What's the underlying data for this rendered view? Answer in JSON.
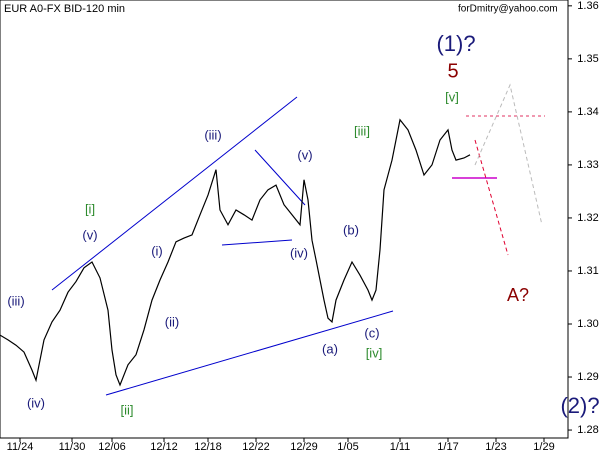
{
  "chart_data": {
    "type": "line",
    "title": "EUR A0-FX BID-120 min",
    "watermark": "forDmitry@yahoo.com",
    "x": [
      0,
      2,
      4,
      6,
      8,
      9,
      11,
      13,
      15,
      17,
      19,
      21,
      23,
      25,
      27,
      28,
      29,
      30,
      32,
      34,
      36,
      38,
      40,
      42,
      44,
      46,
      48,
      50,
      52,
      54,
      55,
      57,
      59,
      61,
      63,
      65,
      67,
      69,
      71,
      73,
      75,
      76,
      77,
      78,
      79,
      80,
      81,
      82,
      83,
      84,
      86,
      88,
      90,
      92,
      93,
      94,
      95,
      96,
      97,
      98,
      99,
      100,
      102,
      104,
      106,
      108,
      110,
      112,
      113,
      114,
      116,
      117.5
    ],
    "values": [
      1.2979,
      1.297,
      1.296,
      1.2947,
      1.2913,
      1.2894,
      1.297,
      1.3004,
      1.3026,
      1.306,
      1.308,
      1.3106,
      1.3117,
      1.3087,
      1.3026,
      1.2951,
      1.2904,
      1.2885,
      1.2923,
      1.2942,
      1.2989,
      1.3045,
      1.3083,
      1.3117,
      1.3155,
      1.3162,
      1.3168,
      1.3206,
      1.3243,
      1.3291,
      1.3215,
      1.3187,
      1.3215,
      1.3206,
      1.3196,
      1.3234,
      1.3253,
      1.3262,
      1.3225,
      1.3206,
      1.3187,
      1.3272,
      1.3234,
      1.3158,
      1.3121,
      1.3083,
      1.3045,
      1.3011,
      1.3004,
      1.3045,
      1.3083,
      1.3117,
      1.3092,
      1.3064,
      1.3045,
      1.3064,
      1.314,
      1.3253,
      1.3281,
      1.3309,
      1.3347,
      1.3385,
      1.3366,
      1.3328,
      1.3281,
      1.33,
      1.3347,
      1.3366,
      1.3328,
      1.3309,
      1.3313,
      1.3319
    ],
    "color": "#000000",
    "xlim": [
      0,
      142
    ],
    "xticks": [
      {
        "value": 5,
        "label": "11/24"
      },
      {
        "value": 18,
        "label": "11/30"
      },
      {
        "value": 28,
        "label": "12/06"
      },
      {
        "value": 41,
        "label": "12/12"
      },
      {
        "value": 52,
        "label": "12/18"
      },
      {
        "value": 64,
        "label": "12/22"
      },
      {
        "value": 76,
        "label": "12/29"
      },
      {
        "value": 87,
        "label": "1/05"
      },
      {
        "value": 100,
        "label": "1/11"
      },
      {
        "value": 112,
        "label": "1/17"
      },
      {
        "value": 124,
        "label": "1/23"
      },
      {
        "value": 136,
        "label": "1/29"
      }
    ],
    "ylim": [
      1.2785,
      1.3611
    ],
    "yticks": [
      1.36,
      1.35,
      1.34,
      1.33,
      1.32,
      1.31,
      {
        "value": 1.3,
        "label": "1.30"
      },
      1.29,
      1.28
    ],
    "annotations": [
      "(1)?",
      "5",
      "[v]",
      "[iii]",
      "(iii)",
      "(v)",
      "[i]",
      "(v)",
      "(i)",
      "(ii)",
      "(iv)",
      "(b)",
      "(a)",
      "(c)",
      "[iv]",
      "(iii)",
      "(iv)",
      "[ii]",
      "A?",
      "(2)?"
    ]
  }
}
